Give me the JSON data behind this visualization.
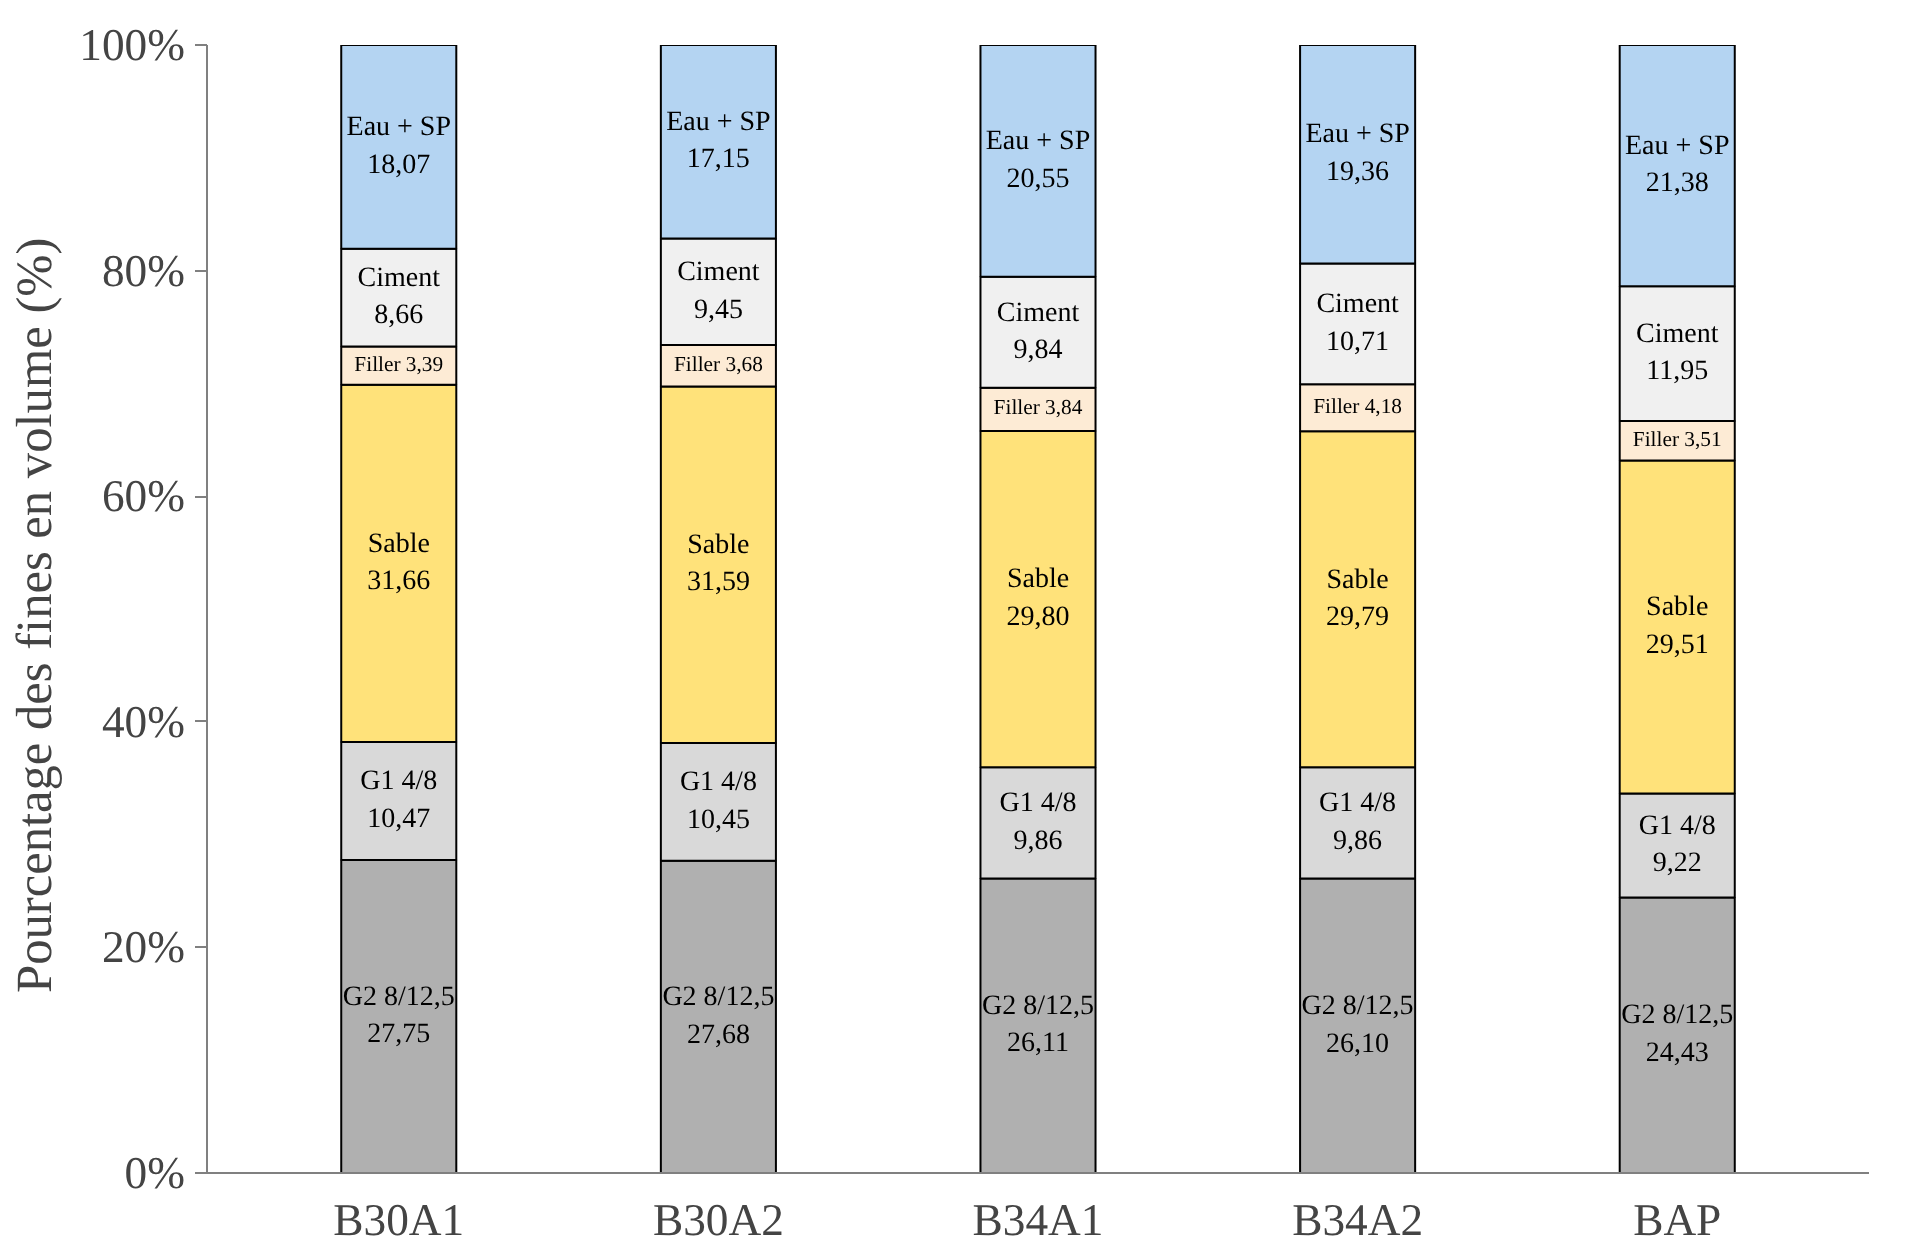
{
  "chart_data": {
    "type": "bar",
    "stacked": true,
    "ylabel": "Pourcentage des fines en volume  (%)",
    "categories": [
      "B30A1",
      "B30A2",
      "B34A1",
      "B34A2",
      "BAP"
    ],
    "ylim": [
      0,
      100
    ],
    "yticks": [
      {
        "value": 0,
        "label": "0%"
      },
      {
        "value": 20,
        "label": "20%"
      },
      {
        "value": 40,
        "label": "40%"
      },
      {
        "value": 60,
        "label": "60%"
      },
      {
        "value": 80,
        "label": "80%"
      },
      {
        "value": 100,
        "label": "100%"
      }
    ],
    "grid": false,
    "legend": false,
    "series": [
      {
        "name": "G2 8/12,5",
        "color": "#b0b0b0",
        "values": [
          27.75,
          27.68,
          26.11,
          26.1,
          24.43
        ],
        "value_labels": [
          "27,75",
          "27,68",
          "26,11",
          "26,10",
          "24,43"
        ]
      },
      {
        "name": "G1 4/8",
        "color": "#d9d9d9",
        "values": [
          10.47,
          10.45,
          9.86,
          9.86,
          9.22
        ],
        "value_labels": [
          "10,47",
          "10,45",
          "9,86",
          "9,86",
          "9,22"
        ]
      },
      {
        "name": "Sable",
        "color": "#ffe27a",
        "values": [
          31.66,
          31.59,
          29.8,
          29.79,
          29.51
        ],
        "value_labels": [
          "31,66",
          "31,59",
          "29,80",
          "29,79",
          "29,51"
        ]
      },
      {
        "name": "Filler",
        "color": "#fdebd5",
        "values": [
          3.39,
          3.68,
          3.84,
          4.18,
          3.51
        ],
        "value_labels": [
          "3,39",
          "3,68",
          "3,84",
          "4,18",
          "3,51"
        ]
      },
      {
        "name": "Ciment",
        "color": "#f0f0f0",
        "values": [
          8.66,
          9.45,
          9.84,
          10.71,
          11.95
        ],
        "value_labels": [
          "8,66",
          "9,45",
          "9,84",
          "10,71",
          "11,95"
        ]
      },
      {
        "name": "Eau + SP",
        "color": "#b4d4f2",
        "values": [
          18.07,
          17.15,
          20.55,
          19.36,
          21.38
        ],
        "value_labels": [
          "18,07",
          "17,15",
          "20,55",
          "19,36",
          "21,38"
        ]
      }
    ]
  }
}
